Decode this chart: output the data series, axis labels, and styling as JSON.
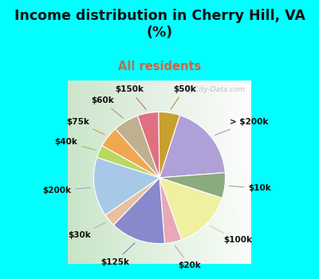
{
  "title": "Income distribution in Cherry Hill, VA\n(%)",
  "subtitle": "All residents",
  "title_color": "#111111",
  "subtitle_color": "#cc6644",
  "bg_cyan": "#00ffff",
  "bg_chart_left": "#c8e8c8",
  "bg_chart_right": "#e8f8f8",
  "watermark": "ⓘ City-Data.com",
  "watermark_color": "#b0b8b8",
  "labels": [
    "> $200k",
    "$10k",
    "$100k",
    "$20k",
    "$125k",
    "$30k",
    "$200k",
    "$40k",
    "$75k",
    "$60k",
    "$150k",
    "$50k"
  ],
  "values": [
    18,
    6,
    14,
    4,
    13,
    3,
    14,
    3,
    5,
    6,
    5,
    5
  ],
  "colors": [
    "#b0a0d8",
    "#8aaa80",
    "#f0f0a0",
    "#e8a8b8",
    "#8888cc",
    "#e8c0a0",
    "#a8c8e8",
    "#b8d860",
    "#f0a850",
    "#c0b090",
    "#e07080",
    "#c8a030"
  ],
  "line_colors": [
    "#9090b8",
    "#8aaa80",
    "#d0d090",
    "#d09090",
    "#7070a8",
    "#c0a890",
    "#90a8c8",
    "#a0b840",
    "#d09040",
    "#a89070",
    "#c06070",
    "#a08820"
  ],
  "startangle": 72,
  "label_fontsize": 7.5,
  "title_fontsize": 12.5,
  "subtitle_fontsize": 10.5
}
